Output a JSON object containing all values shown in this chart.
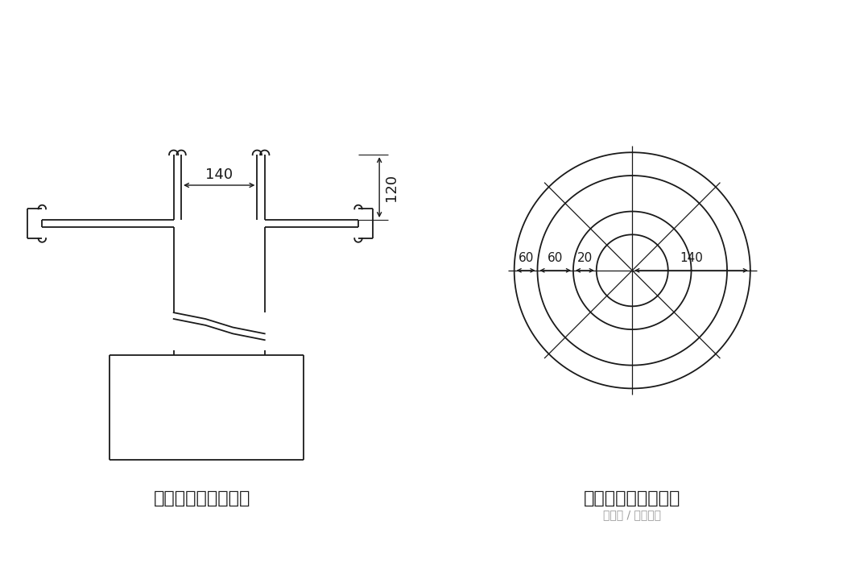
{
  "bg_color": "#ffffff",
  "line_color": "#1a1a1a",
  "dim_color": "#1a1a1a",
  "left_title": "立柱防护栏杆断面图",
  "right_title": "立柱防护栏杆平面图",
  "watermark": "头条号 / 早安乙方",
  "dim_140_left": "140",
  "dim_120": "120",
  "dim_60a": "60",
  "dim_60b": "60",
  "dim_20": "20",
  "dim_140_right": "140"
}
